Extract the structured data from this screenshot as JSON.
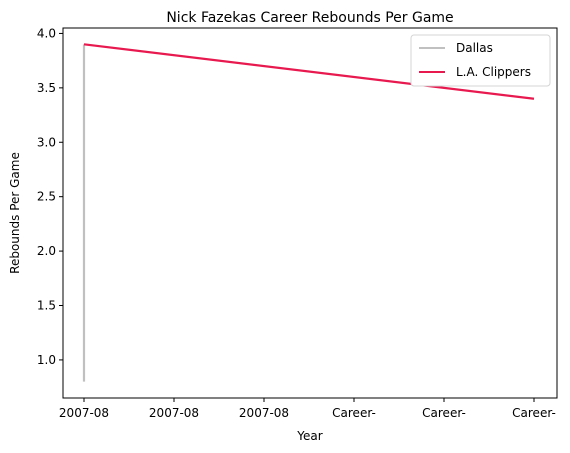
{
  "chart_data": {
    "type": "line",
    "title": "Nick Fazekas Career Rebounds Per Game",
    "xlabel": "Year",
    "ylabel": "Rebounds Per Game",
    "x_tick_labels": [
      "2007-08",
      "2007-08",
      "2007-08",
      "Career-",
      "Career-",
      "Career-"
    ],
    "ylim": [
      0.65,
      4.05
    ],
    "y_ticks": [
      1.0,
      1.5,
      2.0,
      2.5,
      3.0,
      3.5,
      4.0
    ],
    "y_tick_labels": [
      "1.0",
      "1.5",
      "2.0",
      "2.5",
      "3.0",
      "3.5",
      "4.0"
    ],
    "legend_position": "top-right",
    "grid": false,
    "series": [
      {
        "name": "Dallas",
        "color": "#c0c0c0",
        "points": [
          {
            "x": 0,
            "y": 0.8
          },
          {
            "x": 0,
            "y": 3.9
          }
        ]
      },
      {
        "name": "L.A. Clippers",
        "color": "#e8194f",
        "points": [
          {
            "x": 0,
            "y": 3.9
          },
          {
            "x": 5,
            "y": 3.4
          }
        ]
      }
    ]
  }
}
